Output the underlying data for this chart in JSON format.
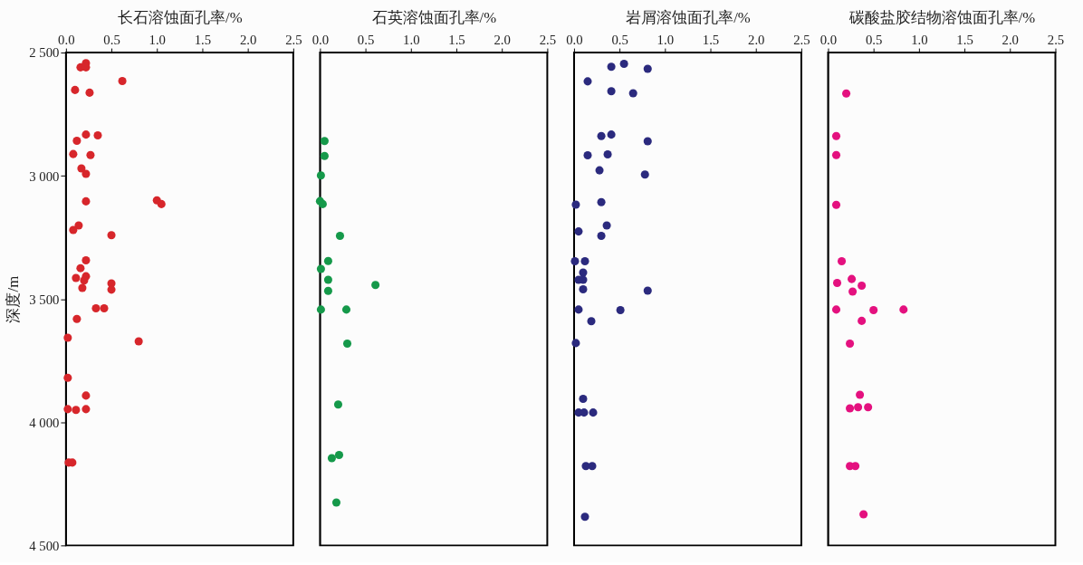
{
  "chart_data": [
    {
      "type": "scatter",
      "xlabel": "长石溶蚀面孔率/%",
      "ylabel": "深度/m",
      "color": "#d7262b",
      "marker": "circle",
      "grid": false,
      "x": [
        0.22,
        0.16,
        0.22,
        0.62,
        0.1,
        0.26,
        0.22,
        0.35,
        0.12,
        0.08,
        0.27,
        0.17,
        0.22,
        0.22,
        1.0,
        1.05,
        0.14,
        0.08,
        0.5,
        0.22,
        0.16,
        0.11,
        0.22,
        0.2,
        0.18,
        0.5,
        0.5,
        0.33,
        0.42,
        0.12,
        0.02,
        0.8,
        0.02,
        0.22,
        0.02,
        0.11,
        0.22,
        0.03,
        0.07
      ],
      "values": [
        2543,
        2560,
        2560,
        2616,
        2652,
        2663,
        2833,
        2836,
        2858,
        2912,
        2916,
        2970,
        2992,
        3104,
        3100,
        3115,
        3202,
        3220,
        3241,
        3343,
        3375,
        3415,
        3408,
        3425,
        3455,
        3437,
        3462,
        3538,
        3538,
        3581,
        3657,
        3672,
        3820,
        3892,
        3947,
        3950,
        3947,
        4164,
        4164
      ],
      "xlim": [
        0,
        2.5
      ],
      "xticks": [
        {
          "value": 0,
          "label": "0.0"
        },
        0.5,
        {
          "value": 1,
          "label": "1.0"
        },
        1.5,
        {
          "value": 2,
          "label": "2.0"
        },
        2.5
      ],
      "ylim": [
        4500,
        2500
      ],
      "yticks": [
        {
          "value": 2500,
          "label": "2 500"
        },
        {
          "value": 3000,
          "label": "3 000"
        },
        {
          "value": 3500,
          "label": "3 500"
        },
        {
          "value": 4000,
          "label": "4 000"
        },
        {
          "value": 4500,
          "label": "4 500"
        }
      ]
    },
    {
      "type": "scatter",
      "xlabel": "石英溶蚀面孔率/%",
      "color": "#15994a",
      "marker": "circle",
      "grid": false,
      "tick_labels": "x",
      "x": [
        0.05,
        0.05,
        0.01,
        0.0,
        0.03,
        0.22,
        0.09,
        0.01,
        0.09,
        0.61,
        0.09,
        0.01,
        0.29,
        0.3,
        0.2,
        0.21,
        0.13,
        0.18
      ],
      "values": [
        2859,
        2920,
        2999,
        3103,
        3115,
        3244,
        3346,
        3378,
        3422,
        3443,
        3467,
        3543,
        3543,
        3681,
        3928,
        4133,
        4146,
        4326
      ],
      "xlim": [
        0,
        2.5
      ],
      "xticks": [
        {
          "value": 0,
          "label": "0.0"
        },
        0.5,
        {
          "value": 1,
          "label": "1.0"
        },
        1.5,
        {
          "value": 2,
          "label": "2.0"
        },
        2.5
      ],
      "ylim": [
        4500,
        2500
      ]
    },
    {
      "type": "scatter",
      "xlabel": "岩屑溶蚀面孔率/%",
      "color": "#2b2a7e",
      "marker": "circle",
      "grid": false,
      "tick_labels": "x",
      "x": [
        0.41,
        0.55,
        0.81,
        0.15,
        0.41,
        0.65,
        0.3,
        0.41,
        0.81,
        0.15,
        0.37,
        0.28,
        0.78,
        0.02,
        0.3,
        0.05,
        0.36,
        0.3,
        0.01,
        0.12,
        0.1,
        0.05,
        0.1,
        0.1,
        0.81,
        0.05,
        0.51,
        0.19,
        0.02,
        0.1,
        0.05,
        0.11,
        0.21,
        0.13,
        0.2,
        0.12
      ],
      "values": [
        2558,
        2546,
        2566,
        2617,
        2657,
        2665,
        2839,
        2833,
        2860,
        2917,
        2913,
        2978,
        2995,
        3117,
        3107,
        3226,
        3202,
        3244,
        3347,
        3347,
        3393,
        3422,
        3422,
        3461,
        3466,
        3543,
        3545,
        3590,
        3679,
        3905,
        3961,
        3961,
        3961,
        4178,
        4178,
        4384
      ],
      "xlim": [
        0,
        2.5
      ],
      "xticks": [
        {
          "value": 0,
          "label": "0.0"
        },
        0.5,
        {
          "value": 1,
          "label": "1.0"
        },
        1.5,
        {
          "value": 2,
          "label": "2.0"
        },
        2.5
      ],
      "ylim": [
        4500,
        2500
      ]
    },
    {
      "type": "scatter",
      "xlabel": "碳酸盐胶结物溶蚀面孔率/%",
      "color": "#e4117f",
      "marker": "circle",
      "grid": false,
      "tick_labels": "x",
      "x": [
        0.2,
        0.09,
        0.09,
        0.09,
        0.15,
        0.1,
        0.26,
        0.37,
        0.27,
        0.09,
        0.5,
        0.83,
        0.37,
        0.24,
        0.35,
        0.24,
        0.33,
        0.44,
        0.24,
        0.3,
        0.39
      ],
      "values": [
        2666,
        2839,
        2916,
        3118,
        3347,
        3435,
        3419,
        3446,
        3470,
        3543,
        3545,
        3543,
        3589,
        3681,
        3889,
        3944,
        3939,
        3939,
        4178,
        4178,
        4374
      ],
      "xlim": [
        0,
        2.5
      ],
      "xticks": [
        {
          "value": 0,
          "label": "0.0"
        },
        0.5,
        {
          "value": 1,
          "label": "1.0"
        },
        1.5,
        {
          "value": 2,
          "label": "2.0"
        },
        2.5
      ],
      "ylim": [
        4500,
        2500
      ]
    }
  ]
}
